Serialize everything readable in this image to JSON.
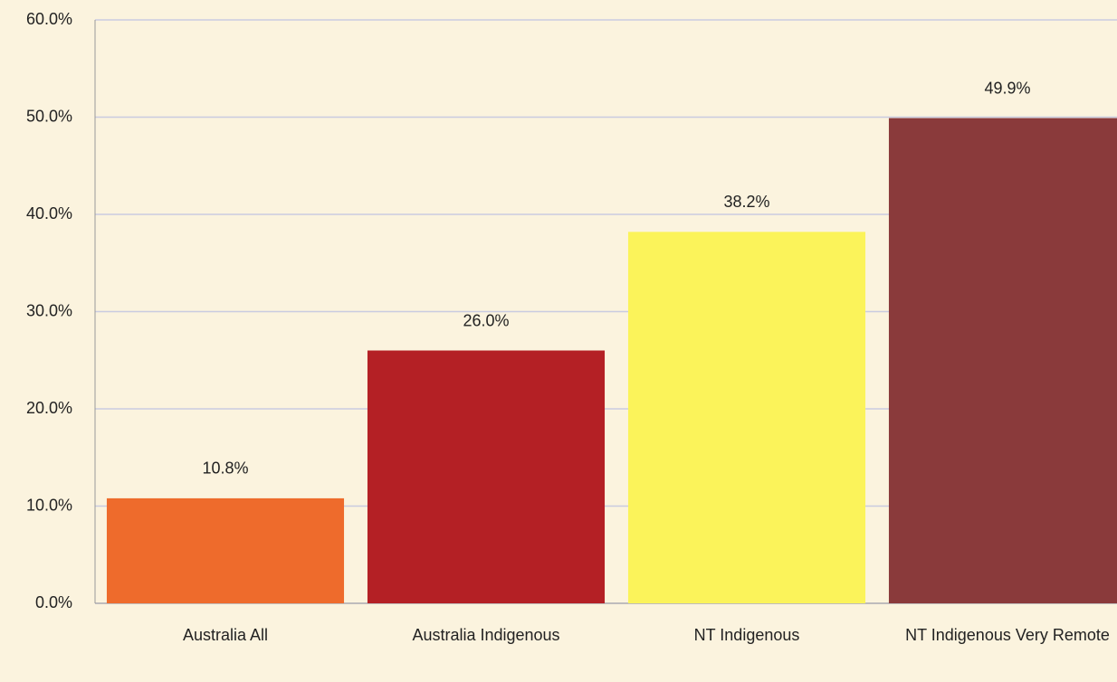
{
  "chart_data": {
    "type": "bar",
    "categories": [
      "Australia All",
      "Australia Indigenous",
      "NT Indigenous",
      "NT Indigenous Very Remote"
    ],
    "values": [
      10.8,
      26.0,
      38.2,
      49.9
    ],
    "value_labels": [
      "10.8%",
      "26.0%",
      "38.2%",
      "49.9%"
    ],
    "colors": [
      "#ee6b2c",
      "#b42025",
      "#fbf35a",
      "#8a3a3b"
    ],
    "ylim": [
      0,
      60
    ],
    "yticks": [
      {
        "value": 0,
        "label": "0.0%"
      },
      {
        "value": 10,
        "label": "10.0%"
      },
      {
        "value": 20,
        "label": "20.0%"
      },
      {
        "value": 30,
        "label": "30.0%"
      },
      {
        "value": 40,
        "label": "40.0%"
      },
      {
        "value": 50,
        "label": "50.0%"
      },
      {
        "value": 60,
        "label": "60.0%"
      }
    ],
    "grid": true
  }
}
